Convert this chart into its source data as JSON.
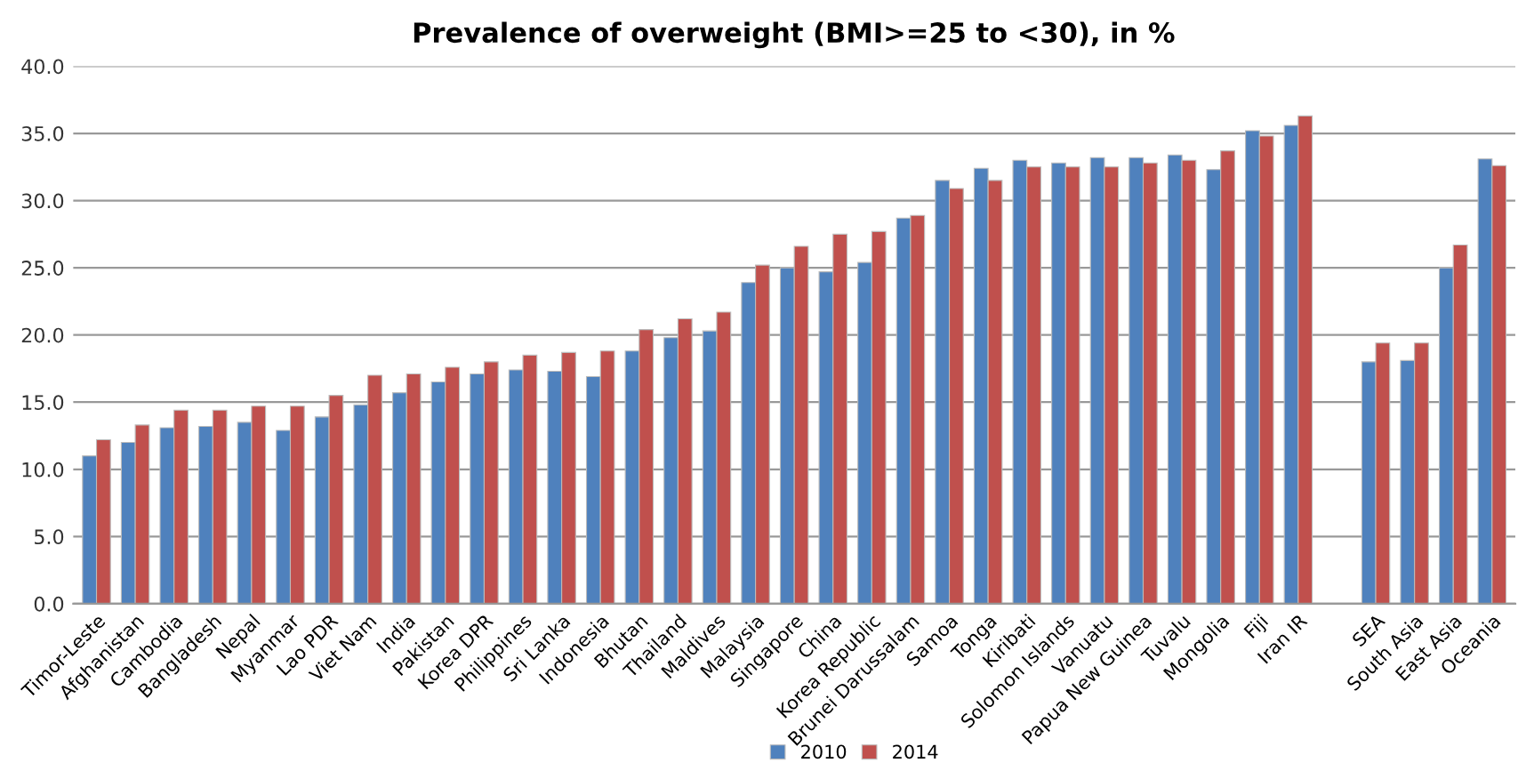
{
  "chart_data": {
    "type": "bar",
    "title": "Prevalence of overweight (BMI>=25 to <30), in %",
    "categories": [
      "Timor-Leste",
      "Afghanistan",
      "Cambodia",
      "Bangladesh",
      "Nepal",
      "Myanmar",
      "Lao PDR",
      "Viet Nam",
      "India",
      "Pakistan",
      "Korea DPR",
      "Philippines",
      "Sri Lanka",
      "Indonesia",
      "Bhutan",
      "Thailand",
      "Maldives",
      "Malaysia",
      "Singapore",
      "China",
      "Korea Republic",
      "Brunei Darussalam",
      "Samoa",
      "Tonga",
      "Kiribati",
      "Solomon Islands",
      "Vanuatu",
      "Papua New Guinea",
      "Tuvalu",
      "Mongolia",
      "Fiji",
      "Iran IR",
      null,
      "SEA",
      "South Asia",
      "East Asia",
      "Oceania"
    ],
    "series": [
      {
        "name": "2010",
        "color": "#4f81bd",
        "values": [
          11.0,
          12.0,
          13.1,
          13.2,
          13.5,
          12.9,
          13.9,
          14.8,
          15.7,
          16.5,
          17.1,
          17.4,
          17.3,
          16.9,
          18.8,
          19.8,
          20.3,
          23.9,
          25.0,
          24.7,
          25.4,
          28.7,
          31.5,
          32.4,
          33.0,
          32.8,
          33.2,
          33.2,
          33.4,
          32.3,
          35.2,
          35.6,
          null,
          18.0,
          18.1,
          25.0,
          33.1
        ]
      },
      {
        "name": "2014",
        "color": "#c0504d",
        "values": [
          12.2,
          13.3,
          14.4,
          14.4,
          14.7,
          14.7,
          15.5,
          17.0,
          17.1,
          17.6,
          18.0,
          18.5,
          18.7,
          18.8,
          20.4,
          21.2,
          21.7,
          25.2,
          26.6,
          27.5,
          27.7,
          28.9,
          30.9,
          31.5,
          32.5,
          32.5,
          32.5,
          32.8,
          33.0,
          33.7,
          34.8,
          36.3,
          null,
          19.4,
          19.4,
          26.7,
          32.6
        ]
      }
    ],
    "ylim": [
      0,
      40
    ],
    "yticks": [
      {
        "value": 0,
        "label": "0.0"
      },
      {
        "value": 5,
        "label": "5.0"
      },
      {
        "value": 10,
        "label": "10.0"
      },
      {
        "value": 15,
        "label": "15.0"
      },
      {
        "value": 20,
        "label": "20.0"
      },
      {
        "value": 25,
        "label": "25.0"
      },
      {
        "value": 30,
        "label": "30.0"
      },
      {
        "value": 35,
        "label": "35.0"
      },
      {
        "value": 40,
        "label": "40.0"
      }
    ],
    "grid": "y",
    "legend": "bottom"
  }
}
